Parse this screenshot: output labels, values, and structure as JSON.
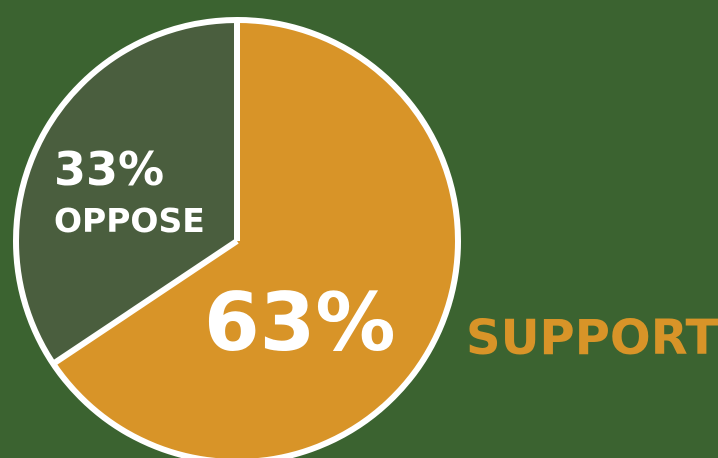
{
  "chart_data": {
    "type": "pie",
    "slices": [
      {
        "label": "SUPPORT",
        "value": 63,
        "value_label": "63%",
        "color": "#d89428"
      },
      {
        "label": "OPPOSE",
        "value": 33,
        "value_label": "33%",
        "color": "#4a5e3e"
      }
    ],
    "outline_color": "#ffffff",
    "background_color": "#3b6330"
  }
}
